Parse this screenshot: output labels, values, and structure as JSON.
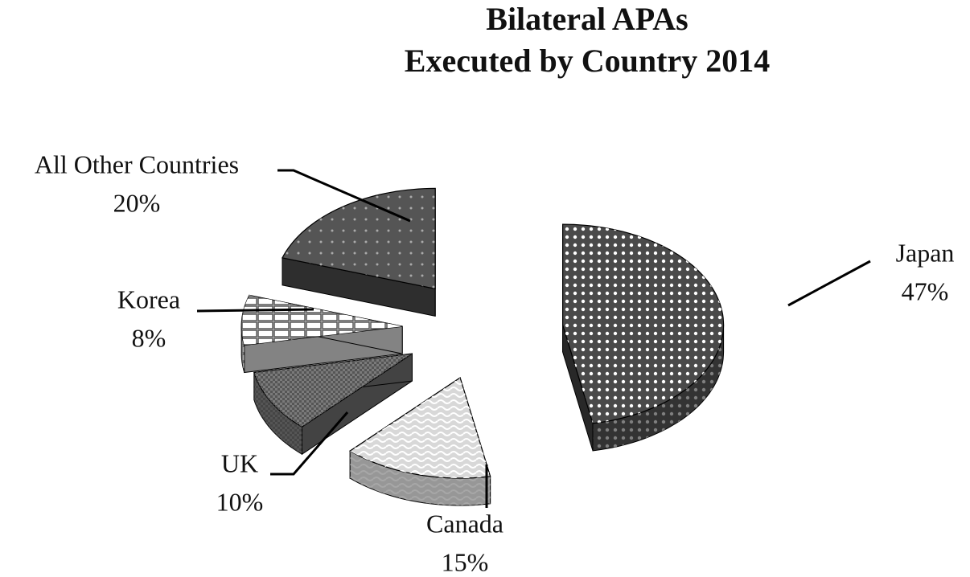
{
  "chart_data": {
    "type": "pie",
    "title": [
      "Bilateral APAs",
      "Executed by Country 2014"
    ],
    "categories": [
      "Japan",
      "Canada",
      "UK",
      "Korea",
      "All Other Countries"
    ],
    "values": [
      47,
      15,
      10,
      8,
      20
    ],
    "value_labels": [
      "47%",
      "15%",
      "10%",
      "8%",
      "20%"
    ],
    "colors": [
      "#4a4a4a",
      "#d8d8d8",
      "#7a7a7a",
      "#efefef",
      "#555555"
    ]
  }
}
